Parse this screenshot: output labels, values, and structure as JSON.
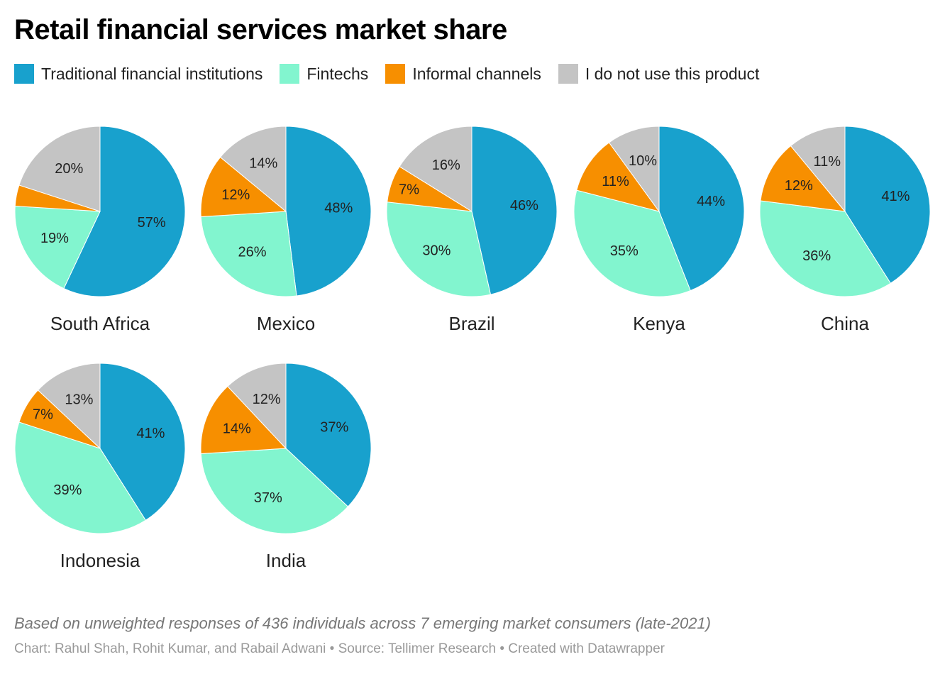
{
  "header": {
    "title": "Retail financial services market share"
  },
  "legend": [
    {
      "label": "Traditional financial institutions",
      "color": "#18A1CD"
    },
    {
      "label": "Fintechs",
      "color": "#82F5CF"
    },
    {
      "label": "Informal channels",
      "color": "#F78F00"
    },
    {
      "label": "I do not use this product",
      "color": "#C4C4C4"
    }
  ],
  "chart_data": {
    "type": "pie",
    "title": "Retail financial services market share",
    "series_names": [
      "Traditional financial institutions",
      "Fintechs",
      "Informal channels",
      "I do not use this product"
    ],
    "colors": [
      "#18A1CD",
      "#82F5CF",
      "#F78F00",
      "#C4C4C4"
    ],
    "charts": [
      {
        "name": "South Africa",
        "values": [
          57,
          19,
          4,
          20
        ],
        "labels": [
          "57%",
          "19%",
          "",
          "20%"
        ]
      },
      {
        "name": "Mexico",
        "values": [
          48,
          26,
          12,
          14
        ],
        "labels": [
          "48%",
          "26%",
          "12%",
          "14%"
        ]
      },
      {
        "name": "Brazil",
        "values": [
          46,
          30,
          7,
          16
        ],
        "labels": [
          "46%",
          "30%",
          "7%",
          "16%"
        ]
      },
      {
        "name": "Kenya",
        "values": [
          44,
          35,
          11,
          10
        ],
        "labels": [
          "44%",
          "35%",
          "11%",
          "10%"
        ]
      },
      {
        "name": "China",
        "values": [
          41,
          36,
          12,
          11
        ],
        "labels": [
          "41%",
          "36%",
          "12%",
          "11%"
        ]
      },
      {
        "name": "Indonesia",
        "values": [
          41,
          39,
          7,
          13
        ],
        "labels": [
          "41%",
          "39%",
          "7%",
          "13%"
        ]
      },
      {
        "name": "India",
        "values": [
          37,
          37,
          14,
          12
        ],
        "labels": [
          "37%",
          "37%",
          "14%",
          "12%"
        ]
      }
    ]
  },
  "footer": {
    "note": "Based on unweighted responses of 436 individuals across 7 emerging market consumers (late-2021)",
    "credit": "Chart: Rahul Shah, Rohit Kumar, and Rabail Adwani • Source: Tellimer Research • Created with Datawrapper"
  }
}
